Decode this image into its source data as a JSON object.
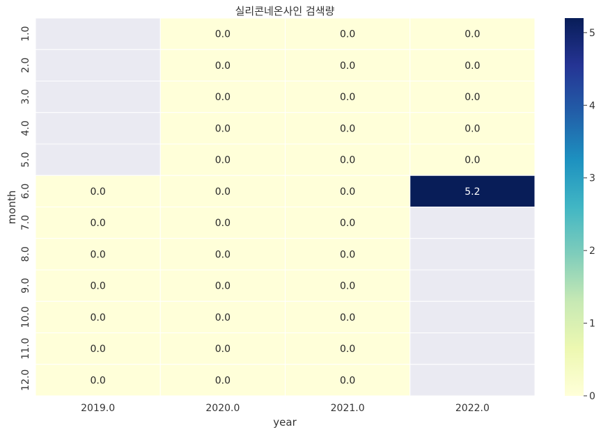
{
  "chart_data": {
    "type": "heatmap",
    "title": "실리콘네온사인 검색량",
    "xlabel": "year",
    "ylabel": "month",
    "x_categories": [
      "2019.0",
      "2020.0",
      "2021.0",
      "2022.0"
    ],
    "y_categories": [
      "1.0",
      "2.0",
      "3.0",
      "4.0",
      "5.0",
      "6.0",
      "7.0",
      "8.0",
      "9.0",
      "10.0",
      "11.0",
      "12.0"
    ],
    "values": [
      [
        null,
        0.0,
        0.0,
        0.0
      ],
      [
        null,
        0.0,
        0.0,
        0.0
      ],
      [
        null,
        0.0,
        0.0,
        0.0
      ],
      [
        null,
        0.0,
        0.0,
        0.0
      ],
      [
        null,
        0.0,
        0.0,
        0.0
      ],
      [
        0.0,
        0.0,
        0.0,
        5.2
      ],
      [
        0.0,
        0.0,
        0.0,
        null
      ],
      [
        0.0,
        0.0,
        0.0,
        null
      ],
      [
        0.0,
        0.0,
        0.0,
        null
      ],
      [
        0.0,
        0.0,
        0.0,
        null
      ],
      [
        0.0,
        0.0,
        0.0,
        null
      ],
      [
        0.0,
        0.0,
        0.0,
        null
      ]
    ],
    "cell_labels": [
      [
        "",
        "0.0",
        "0.0",
        "0.0"
      ],
      [
        "",
        "0.0",
        "0.0",
        "0.0"
      ],
      [
        "",
        "0.0",
        "0.0",
        "0.0"
      ],
      [
        "",
        "0.0",
        "0.0",
        "0.0"
      ],
      [
        "",
        "0.0",
        "0.0",
        "0.0"
      ],
      [
        "0.0",
        "0.0",
        "0.0",
        "5.2"
      ],
      [
        "0.0",
        "0.0",
        "0.0",
        ""
      ],
      [
        "0.0",
        "0.0",
        "0.0",
        ""
      ],
      [
        "0.0",
        "0.0",
        "0.0",
        ""
      ],
      [
        "0.0",
        "0.0",
        "0.0",
        ""
      ],
      [
        "0.0",
        "0.0",
        "0.0",
        ""
      ],
      [
        "0.0",
        "0.0",
        "0.0",
        ""
      ]
    ],
    "colorbar": {
      "colormap": "YlGnBu",
      "range": [
        0,
        5.2
      ],
      "ticks": [
        0,
        1,
        2,
        3,
        4,
        5
      ],
      "tick_labels": [
        "0",
        "1",
        "2",
        "3",
        "4",
        "5"
      ]
    },
    "missing_color": "#eaeaf2"
  }
}
